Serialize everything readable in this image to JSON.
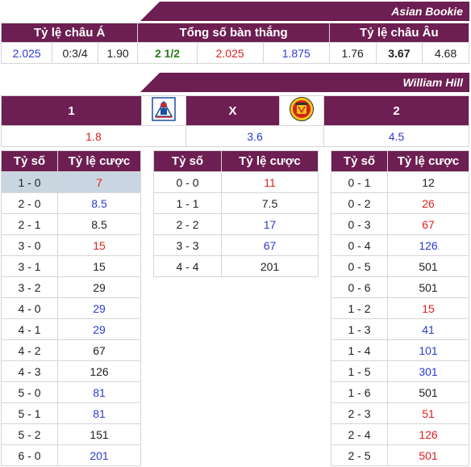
{
  "asian_bookie": {
    "banner": "Asian Bookie",
    "headers": [
      "Tỷ lệ châu Á",
      "Tổng số bàn thắng",
      "Tỷ lệ châu Âu"
    ],
    "values": [
      {
        "text": "2.025",
        "color": "blue"
      },
      {
        "text": "0:3/4",
        "color": "dark"
      },
      {
        "text": "1.90",
        "color": "dark"
      },
      {
        "text": "2 1/2",
        "color": "green"
      },
      {
        "text": "2.025",
        "color": "red"
      },
      {
        "text": "1.875",
        "color": "blue"
      },
      {
        "text": "1.76",
        "color": "dark"
      },
      {
        "text": "3.67",
        "color": "bold"
      },
      {
        "text": "4.68",
        "color": "dark"
      }
    ]
  },
  "william_hill": {
    "banner": "William Hill",
    "headers": [
      "1",
      "X",
      "2"
    ],
    "values": [
      {
        "text": "1.8",
        "color": "red"
      },
      {
        "text": "3.6",
        "color": "blue"
      },
      {
        "text": "4.5",
        "color": "blue"
      }
    ]
  },
  "score_headers": {
    "score": "Tỷ số",
    "odds": "Tỷ lệ cược"
  },
  "home_win": [
    {
      "score": "1 - 0",
      "odds": "7",
      "color": "red",
      "highlight": true
    },
    {
      "score": "2 - 0",
      "odds": "8.5",
      "color": "blue"
    },
    {
      "score": "2 - 1",
      "odds": "8.5",
      "color": "dark"
    },
    {
      "score": "3 - 0",
      "odds": "15",
      "color": "red"
    },
    {
      "score": "3 - 1",
      "odds": "15",
      "color": "dark"
    },
    {
      "score": "3 - 2",
      "odds": "29",
      "color": "dark"
    },
    {
      "score": "4 - 0",
      "odds": "29",
      "color": "blue"
    },
    {
      "score": "4 - 1",
      "odds": "29",
      "color": "blue"
    },
    {
      "score": "4 - 2",
      "odds": "67",
      "color": "dark"
    },
    {
      "score": "4 - 3",
      "odds": "126",
      "color": "dark"
    },
    {
      "score": "5 - 0",
      "odds": "81",
      "color": "blue"
    },
    {
      "score": "5 - 1",
      "odds": "81",
      "color": "blue"
    },
    {
      "score": "5 - 2",
      "odds": "151",
      "color": "dark"
    },
    {
      "score": "6 - 0",
      "odds": "201",
      "color": "blue"
    }
  ],
  "draw": [
    {
      "score": "0 - 0",
      "odds": "11",
      "color": "red"
    },
    {
      "score": "1 - 1",
      "odds": "7.5",
      "color": "dark"
    },
    {
      "score": "2 - 2",
      "odds": "17",
      "color": "blue"
    },
    {
      "score": "3 - 3",
      "odds": "67",
      "color": "blue"
    },
    {
      "score": "4 - 4",
      "odds": "201",
      "color": "dark"
    }
  ],
  "away_win": [
    {
      "score": "0 - 1",
      "odds": "12",
      "color": "dark"
    },
    {
      "score": "0 - 2",
      "odds": "26",
      "color": "red"
    },
    {
      "score": "0 - 3",
      "odds": "67",
      "color": "red"
    },
    {
      "score": "0 - 4",
      "odds": "126",
      "color": "blue"
    },
    {
      "score": "0 - 5",
      "odds": "501",
      "color": "dark"
    },
    {
      "score": "0 - 6",
      "odds": "501",
      "color": "dark"
    },
    {
      "score": "1 - 2",
      "odds": "15",
      "color": "red"
    },
    {
      "score": "1 - 3",
      "odds": "41",
      "color": "blue"
    },
    {
      "score": "1 - 4",
      "odds": "101",
      "color": "blue"
    },
    {
      "score": "1 - 5",
      "odds": "301",
      "color": "blue"
    },
    {
      "score": "1 - 6",
      "odds": "501",
      "color": "dark"
    },
    {
      "score": "2 - 3",
      "odds": "51",
      "color": "red"
    },
    {
      "score": "2 - 4",
      "odds": "126",
      "color": "red"
    },
    {
      "score": "2 - 5",
      "odds": "501",
      "color": "red"
    }
  ],
  "logos": {
    "home": "crystal-palace-crest",
    "away": "manchester-united-crest"
  }
}
